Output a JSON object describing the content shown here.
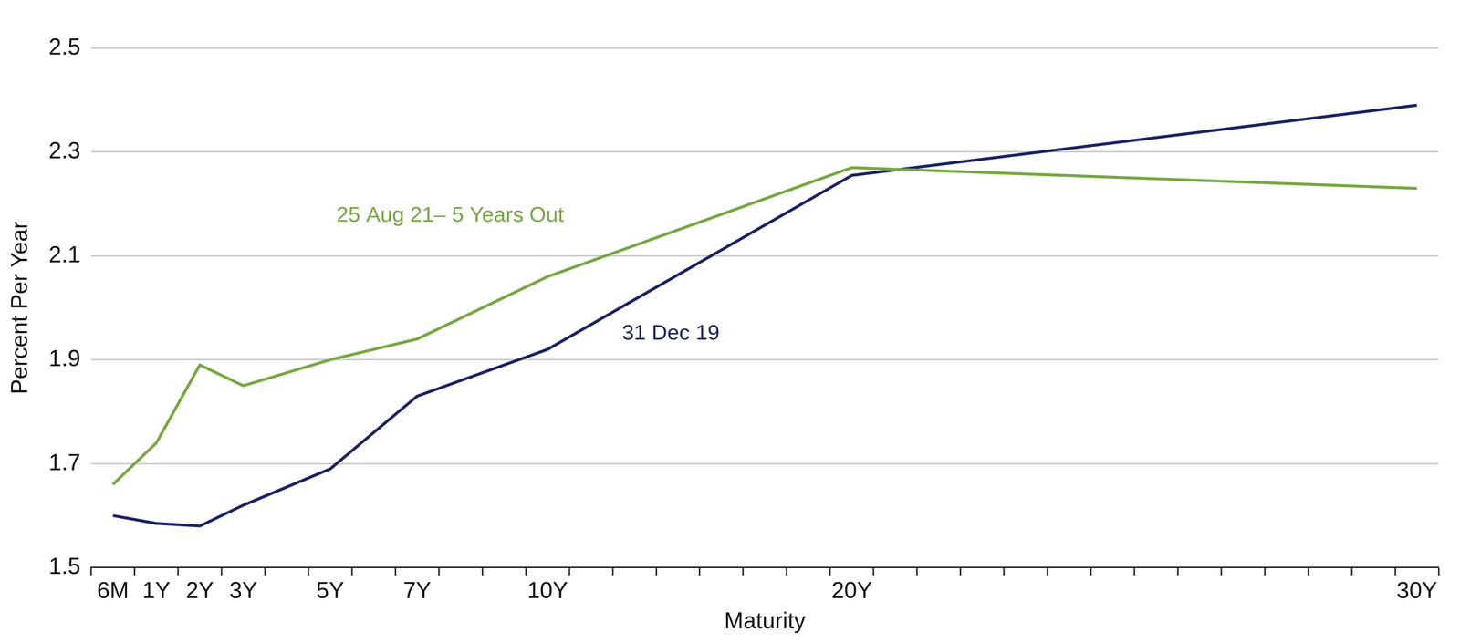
{
  "chart_data": {
    "type": "line",
    "x_label": "Maturity",
    "y_label": "Percent Per Year",
    "categories": [
      "6M",
      "1Y",
      "2Y",
      "3Y",
      null,
      "5Y",
      null,
      "7Y",
      null,
      null,
      "10Y",
      null,
      null,
      null,
      null,
      null,
      null,
      "20Y",
      null,
      null,
      null,
      null,
      null,
      null,
      null,
      null,
      null,
      null,
      null,
      null,
      "30Y"
    ],
    "series": [
      {
        "name": "25 Aug 21– 5 Years Out",
        "color": "#77a843",
        "values": [
          1.66,
          1.74,
          1.89,
          1.85,
          null,
          1.9,
          null,
          1.94,
          null,
          null,
          2.06,
          null,
          null,
          null,
          null,
          null,
          null,
          2.27,
          null,
          null,
          null,
          null,
          null,
          null,
          null,
          null,
          null,
          null,
          null,
          null,
          2.23
        ]
      },
      {
        "name": "31 Dec 19",
        "color": "#1b2462",
        "values": [
          1.6,
          1.585,
          1.58,
          1.62,
          null,
          1.69,
          null,
          1.83,
          null,
          null,
          1.92,
          null,
          null,
          null,
          null,
          null,
          null,
          2.255,
          null,
          null,
          null,
          null,
          null,
          null,
          null,
          null,
          null,
          null,
          null,
          null,
          2.39
        ]
      }
    ],
    "ylim": [
      1.5,
      2.5
    ],
    "yticks": [
      1.5,
      1.7,
      1.9,
      2.1,
      2.3,
      2.5
    ],
    "grid": true
  }
}
